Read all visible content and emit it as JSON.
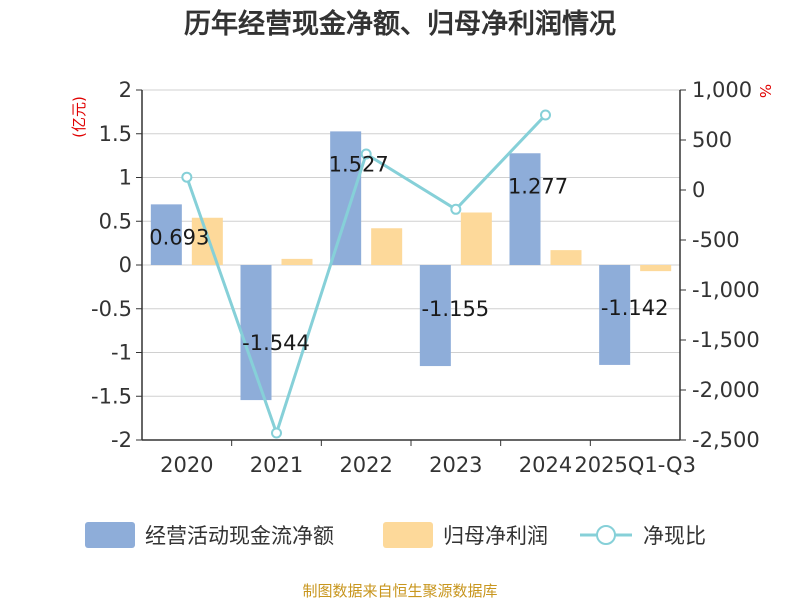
{
  "chart_data": {
    "type": "bar",
    "title": "历年经营现金净额、归母净利润情况",
    "left_unit": "(亿元)",
    "right_unit": "%",
    "categories": [
      "2020",
      "2021",
      "2022",
      "2023",
      "2024",
      "2025Q1-Q3"
    ],
    "series": [
      {
        "name": "经营活动现金流净额",
        "type": "bar",
        "axis": "left",
        "values": [
          0.693,
          -1.544,
          1.527,
          -1.155,
          1.277,
          -1.142
        ],
        "labels": [
          "0.693",
          "-1.544",
          "1.527",
          "-1.155",
          "1.277",
          "-1.142"
        ],
        "color": "#8eadd9"
      },
      {
        "name": "归母净利润",
        "type": "bar",
        "axis": "left",
        "values": [
          0.54,
          0.07,
          0.42,
          0.6,
          0.17,
          -0.07
        ],
        "color": "#fdd99a"
      },
      {
        "name": "净现比",
        "type": "line",
        "axis": "right",
        "values": [
          128,
          -2430,
          360,
          -193,
          750,
          null
        ],
        "color": "#86d0d8"
      }
    ],
    "y_left": {
      "min": -2,
      "max": 2,
      "ticks": [
        2,
        1.5,
        1,
        0.5,
        0,
        -0.5,
        -1,
        -1.5,
        -2
      ],
      "tick_labels": [
        "2",
        "1.5",
        "1",
        "0.5",
        "0",
        "-0.5",
        "-1",
        "-1.5",
        "-2"
      ]
    },
    "y_right": {
      "min": -2500,
      "max": 1000,
      "ticks": [
        1000,
        500,
        0,
        -500,
        -1000,
        -1500,
        -2000,
        -2500
      ],
      "tick_labels": [
        "1,000",
        "500",
        "0",
        "-500",
        "-1,000",
        "-1,500",
        "-2,000",
        "-2,500"
      ]
    },
    "grid": true,
    "legend_position": "bottom"
  },
  "source_text": "制图数据来自恒生聚源数据库"
}
